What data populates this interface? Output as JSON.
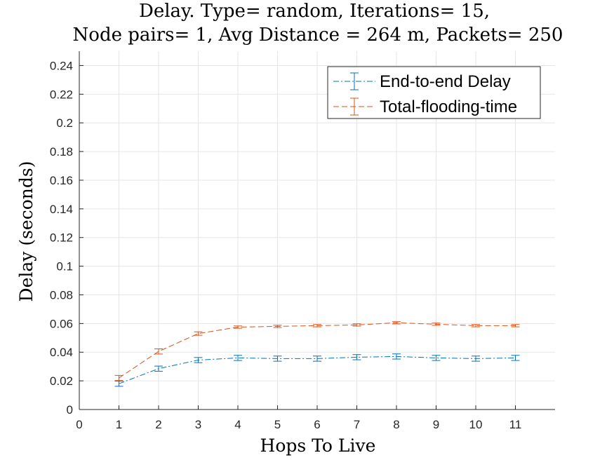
{
  "chart_data": {
    "type": "line",
    "title": [
      "Delay. Type= random, Iterations= 15,",
      "Node pairs= 1, Avg Distance = 264 m, Packets= 250"
    ],
    "xlabel": "Hops To Live",
    "ylabel": "Delay (seconds)",
    "xlim": [
      0,
      12
    ],
    "ylim": [
      0,
      0.25
    ],
    "xticks": [
      0,
      1,
      2,
      3,
      4,
      5,
      6,
      7,
      8,
      9,
      10,
      11
    ],
    "yticks": [
      0,
      0.02,
      0.04,
      0.06,
      0.08,
      0.1,
      0.12,
      0.14,
      0.16,
      0.18,
      0.2,
      0.22,
      0.24
    ],
    "grid": true,
    "legend_location": "top-right",
    "x": [
      1,
      2,
      3,
      4,
      5,
      6,
      7,
      8,
      9,
      10,
      11
    ],
    "series": [
      {
        "name": "End-to-end Delay",
        "color": "#0072BD",
        "line_style": "dash-dot",
        "values": [
          0.018,
          0.0285,
          0.0345,
          0.036,
          0.0355,
          0.0355,
          0.0365,
          0.037,
          0.036,
          0.0355,
          0.036
        ],
        "errors": [
          0.0018,
          0.0018,
          0.0018,
          0.0018,
          0.0018,
          0.0018,
          0.0018,
          0.0018,
          0.0018,
          0.0018,
          0.0018
        ]
      },
      {
        "name": "Total-flooding-time",
        "color": "#D95319",
        "line_style": "dashed",
        "values": [
          0.022,
          0.0405,
          0.053,
          0.0575,
          0.058,
          0.0585,
          0.059,
          0.0605,
          0.0595,
          0.0585,
          0.0585
        ],
        "errors": [
          0.0018,
          0.0018,
          0.0012,
          0.0008,
          0.0008,
          0.0008,
          0.0008,
          0.0008,
          0.0008,
          0.0008,
          0.0008
        ]
      }
    ]
  }
}
